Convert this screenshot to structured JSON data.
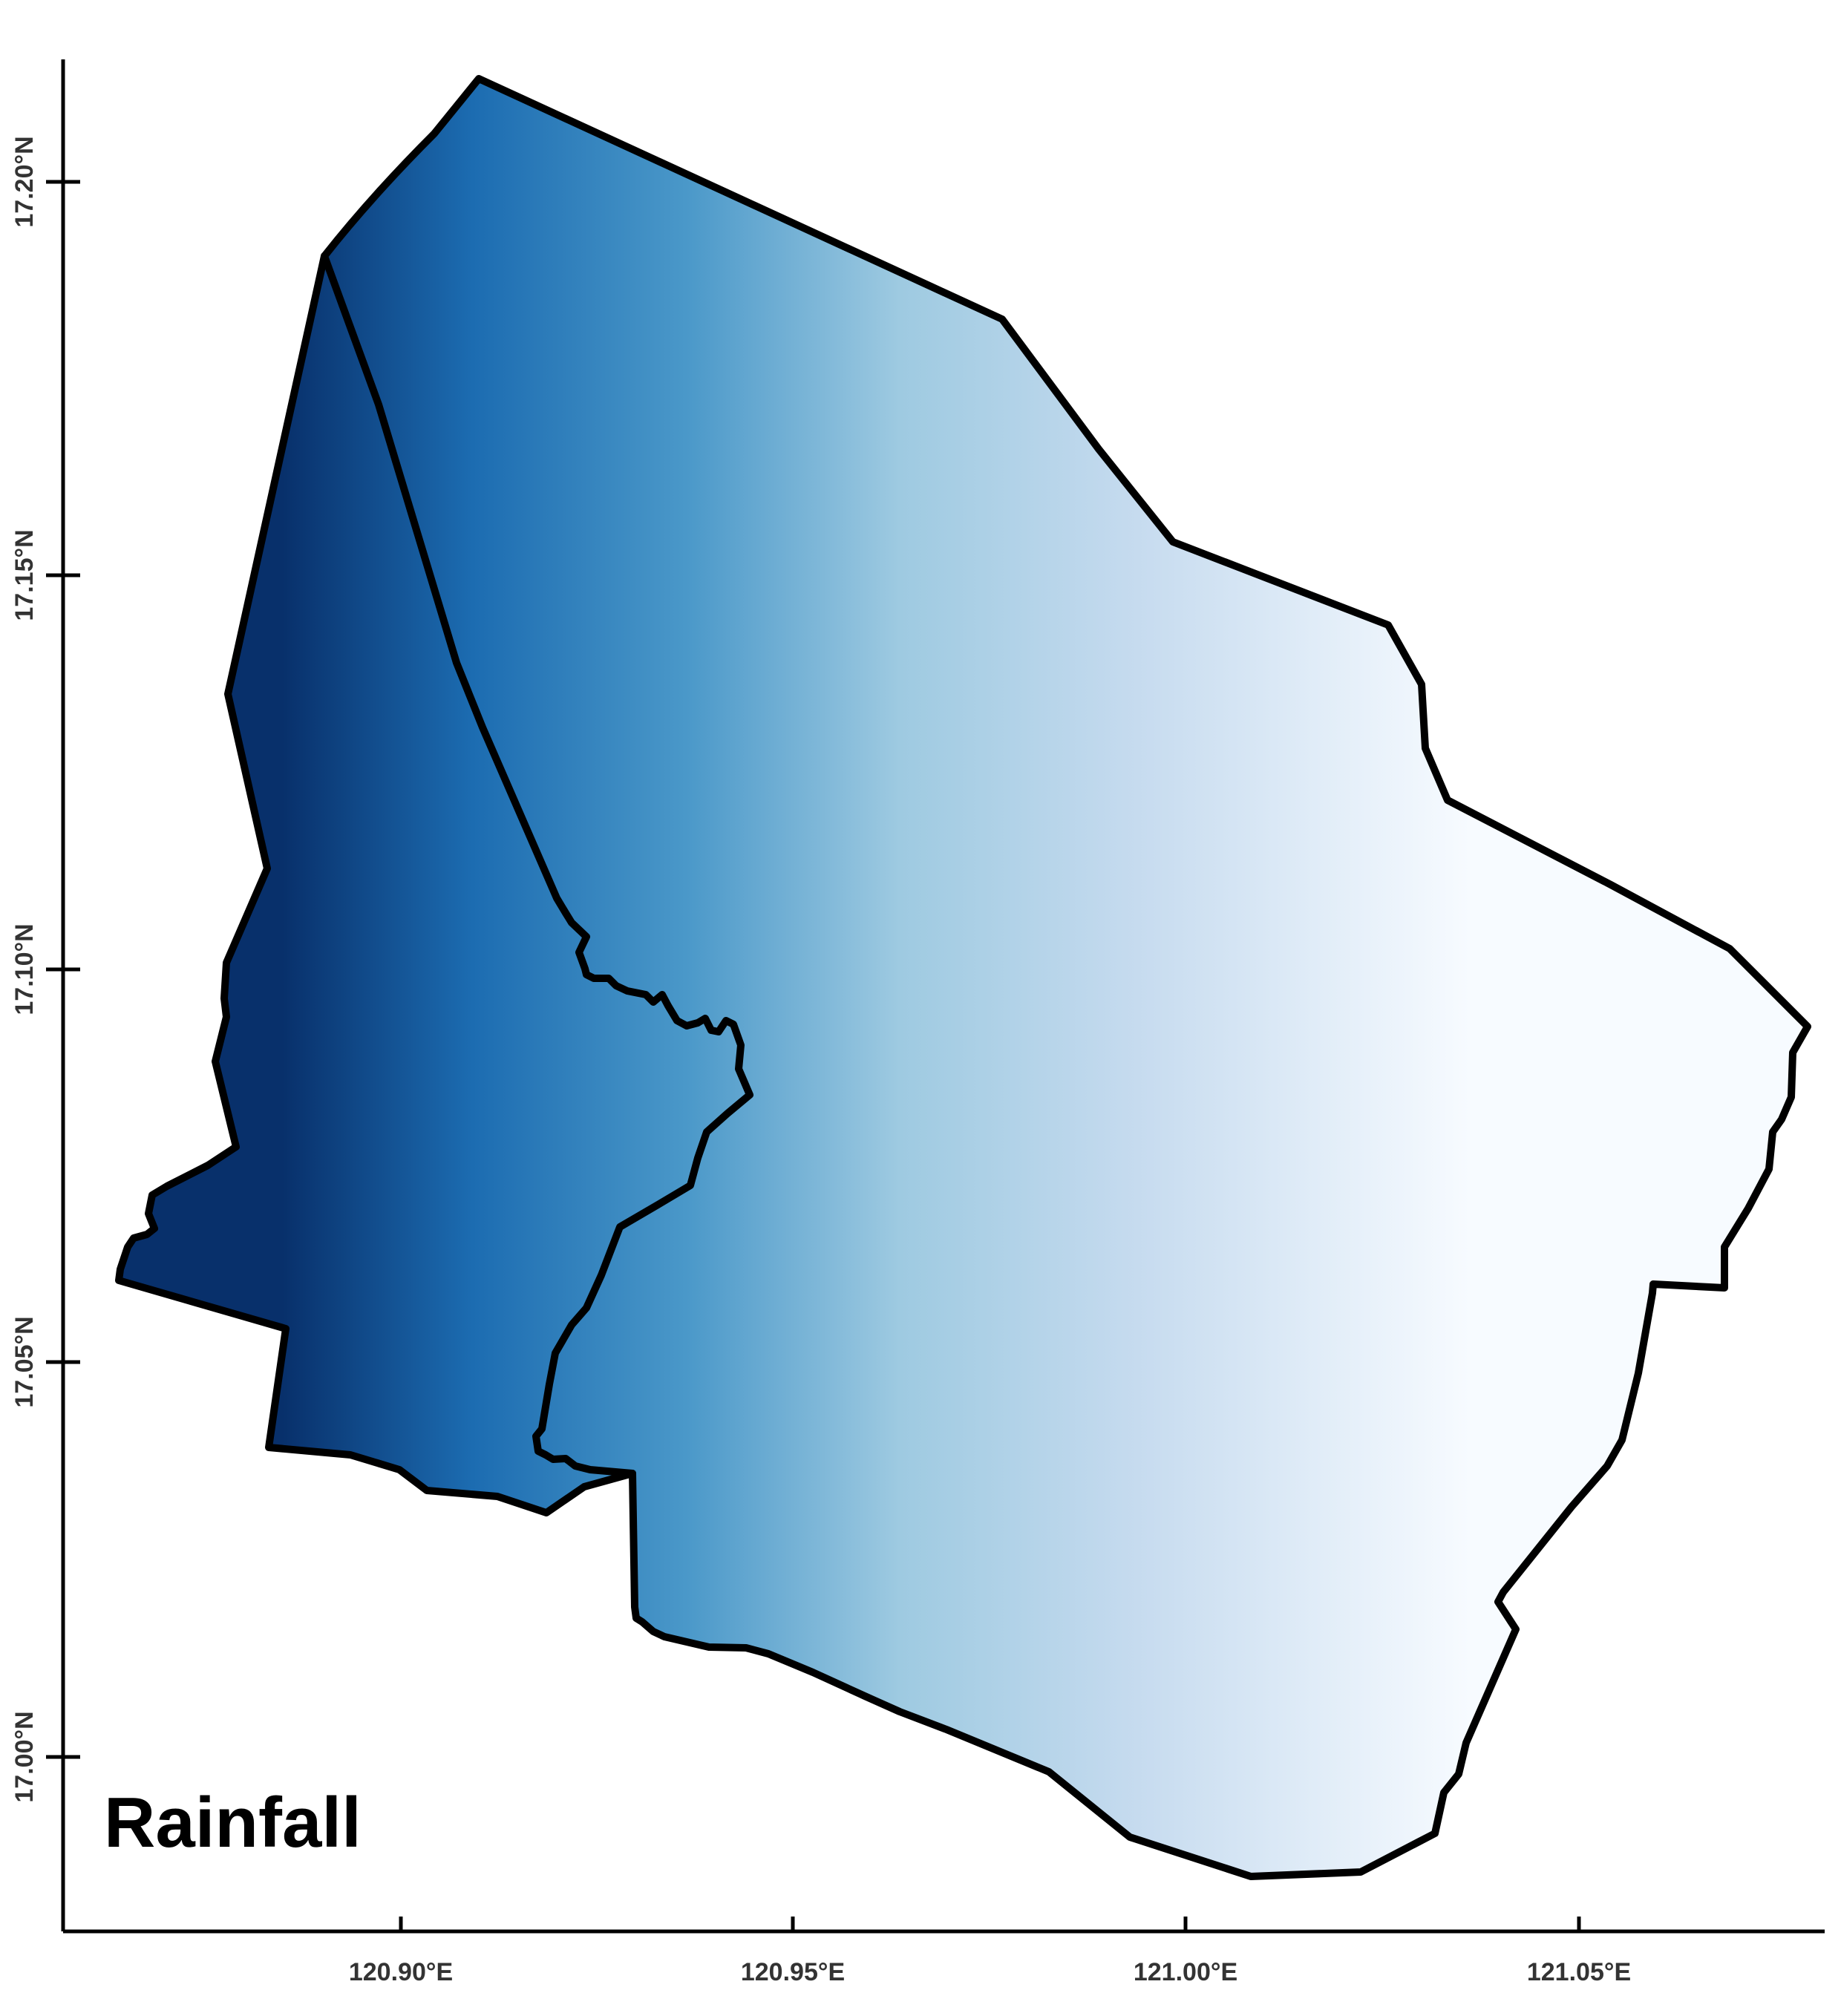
{
  "title": "Rainfall",
  "x_axis": {
    "ticks": [
      "120.90°E",
      "120.95°E",
      "121.00°E",
      "121.05°E"
    ]
  },
  "y_axis": {
    "ticks": [
      "17.00°N",
      "17.05°N",
      "17.10°N",
      "17.15°N",
      "17.20°N"
    ]
  },
  "colors": {
    "wettest": "#08306b",
    "mid_dark": "#1c6cb1",
    "mid": "#4a98c9",
    "mid_light": "#9ecae1",
    "light": "#c6dbef",
    "driest": "#f7fbff",
    "boundary": "#000000"
  },
  "legend": "none",
  "rainfall_gradient": "decreasing west to east"
}
